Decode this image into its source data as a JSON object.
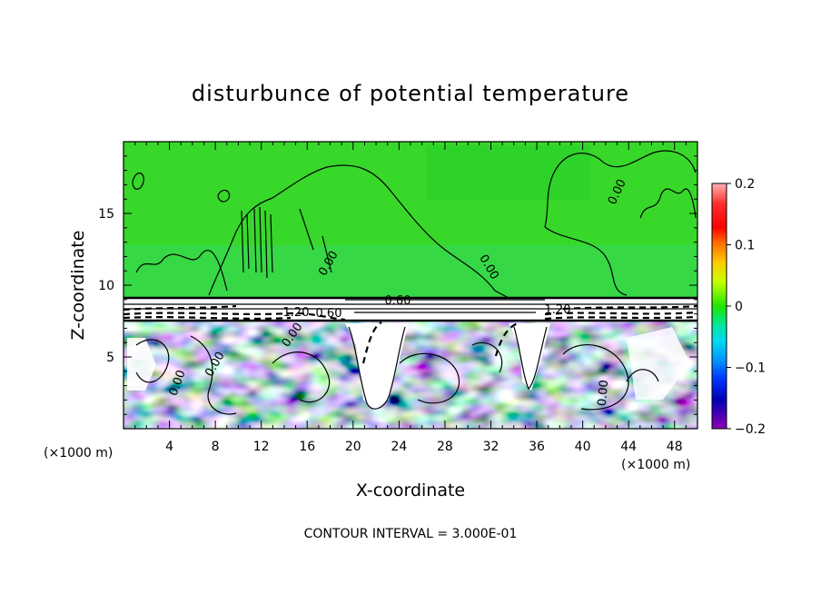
{
  "chart_data": {
    "type": "heatmap",
    "title": "disturbunce of potential temperature",
    "xlabel": "X-coordinate",
    "ylabel": "Z-coordinate",
    "x_unit_left": "(×1000 m)",
    "x_unit_right": "(×1000 m)",
    "footer": "CONTOUR INTERVAL = 3.000E-01",
    "xlim": [
      0,
      50
    ],
    "ylim": [
      0,
      20
    ],
    "x_ticks": [
      4,
      8,
      12,
      16,
      20,
      24,
      28,
      32,
      36,
      40,
      44,
      48
    ],
    "y_ticks": [
      5,
      10,
      15
    ],
    "colorbar": {
      "ticks": [
        "0.2",
        "0.1",
        "0",
        "−0.1",
        "−0.2"
      ],
      "values": [
        0.2,
        0.1,
        0,
        -0.1,
        -0.2
      ],
      "range": [
        -0.2,
        0.2
      ],
      "colors": [
        "#ff7f7f",
        "#ff3f3f",
        "#ff0000",
        "#ff5500",
        "#ff9a00",
        "#ffd200",
        "#dcff00",
        "#9aff00",
        "#37d200",
        "#00d28c",
        "#00dcdc",
        "#00aaff",
        "#0055ff",
        "#0000dc",
        "#5a00b4",
        "#8c00aa"
      ]
    },
    "contour_labels": [
      "0.60",
      "1.20",
      "0.60",
      "1.20",
      "0.00",
      "0.00",
      "0.00",
      "0.00",
      "0.00",
      "0.00",
      "0.00"
    ],
    "grid": false
  }
}
